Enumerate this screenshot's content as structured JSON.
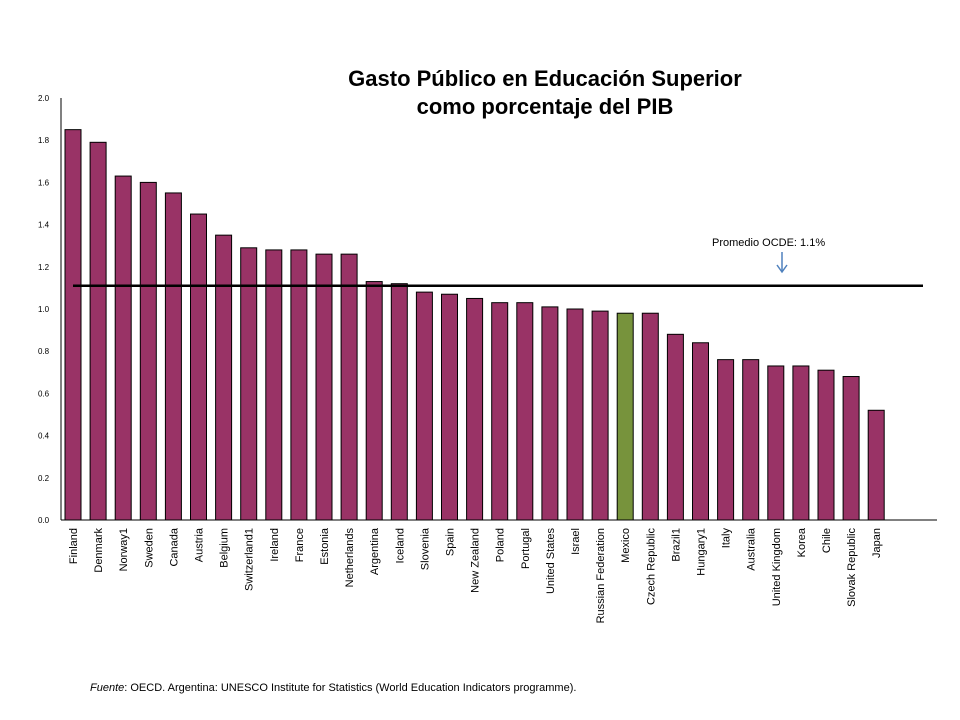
{
  "chart_data": {
    "type": "bar",
    "title": [
      "Gasto Público en Educación Superior",
      "como porcentaje del PIB"
    ],
    "ylim": [
      0,
      2.0
    ],
    "y_ticks": [
      "0.0",
      "0.2",
      "0.4",
      "0.6",
      "0.8",
      "1.0",
      "1.2",
      "1.4",
      "1.6",
      "1.8",
      "2.0"
    ],
    "grid": false,
    "categories": [
      "Finland",
      "Denmark",
      "Norway1",
      "Sweden",
      "Canada",
      "Austria",
      "Belgium",
      "Switzerland1",
      "Ireland",
      "France",
      "Estonia",
      "Netherlands",
      "Argentina",
      "Iceland",
      "Slovenia",
      "Spain",
      "New Zealand",
      "Poland",
      "Portugal",
      "United States",
      "Israel",
      "Russian Federation",
      "Mexico",
      "Czech Republic",
      "Brazil1",
      "Hungary1",
      "Italy",
      "Australia",
      "United Kingdom",
      "Korea",
      "Chile",
      "Slovak Republic",
      "Japan"
    ],
    "values": [
      1.85,
      1.79,
      1.63,
      1.6,
      1.55,
      1.45,
      1.35,
      1.29,
      1.28,
      1.28,
      1.26,
      1.26,
      1.13,
      1.12,
      1.08,
      1.07,
      1.05,
      1.03,
      1.03,
      1.01,
      1.0,
      0.99,
      0.98,
      0.98,
      0.88,
      0.84,
      0.76,
      0.76,
      0.73,
      0.73,
      0.71,
      0.68,
      0.52
    ],
    "highlight_category": "Mexico",
    "colors": {
      "bar": "#993366",
      "highlight": "#77933c",
      "average_line": "#000000",
      "arrow": "#4f81bd"
    },
    "reference_line": {
      "value": 1.11,
      "label": "Promedio OCDE: 1.1%"
    }
  },
  "source": {
    "label": "Fuente",
    "text": ": OECD. Argentina: UNESCO Institute for Statistics (World Education Indicators programme)."
  }
}
